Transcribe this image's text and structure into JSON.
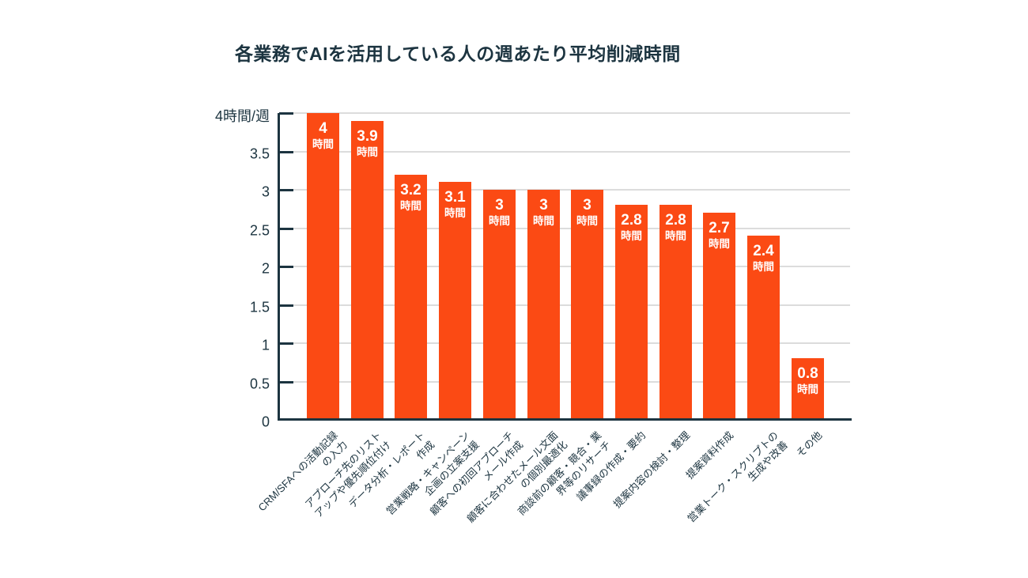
{
  "page": {
    "background": "#FFFFFF"
  },
  "colors": {
    "bar": "#FB4A14",
    "axis_and_text": "#1C3440",
    "gridline": "#DCDCDC",
    "bar_label_text": "#FFFFFF"
  },
  "header": {
    "title": "各業務でAIを活用している人の週あたり平均削減時間"
  },
  "y_axis": {
    "ticks": [
      {
        "value": 4,
        "label": "4時間/週"
      },
      {
        "value": 3.5,
        "label": "3.5"
      },
      {
        "value": 3,
        "label": "3"
      },
      {
        "value": 2.5,
        "label": "2.5"
      },
      {
        "value": 2,
        "label": "2"
      },
      {
        "value": 1.5,
        "label": "1.5"
      },
      {
        "value": 1,
        "label": "1"
      },
      {
        "value": 0.5,
        "label": "0.5"
      },
      {
        "value": 0,
        "label": "0"
      }
    ]
  },
  "chart_data": {
    "type": "bar",
    "title": "各業務でAIを活用している人の週あたり平均削減時間",
    "categories": [
      "CRM/SFAへの活動記録\nの入力",
      "アプローチ先のリスト\nアップや優先順位付け",
      "データ分析・レポート\n作成",
      "営業戦略・キャンペーン\n企画の立案支援",
      "顧客への初回アプローチ\nメール作成",
      "顧客に合わせたメール文面\nの個別最適化",
      "商談前の顧客・競合・業\n界等のリサーチ",
      "議事録の作成・要約",
      "提案内容の検討・整理",
      "提案資料作成",
      "営業トーク・スクリプトの\n生成や改善",
      "その他"
    ],
    "values": [
      4,
      3.9,
      3.2,
      3.1,
      3,
      3,
      3,
      2.8,
      2.8,
      2.7,
      2.4,
      0.8
    ],
    "bar_value_labels": [
      "4",
      "3.9",
      "3.2",
      "3.1",
      "3",
      "3",
      "3",
      "2.8",
      "2.8",
      "2.7",
      "2.4",
      "0.8"
    ],
    "bar_unit": "時間",
    "xlabel": "",
    "ylabel": "4時間/週",
    "ylim": [
      0,
      4
    ],
    "ytick_interval": 0.5,
    "grid": true,
    "legend": "none"
  }
}
